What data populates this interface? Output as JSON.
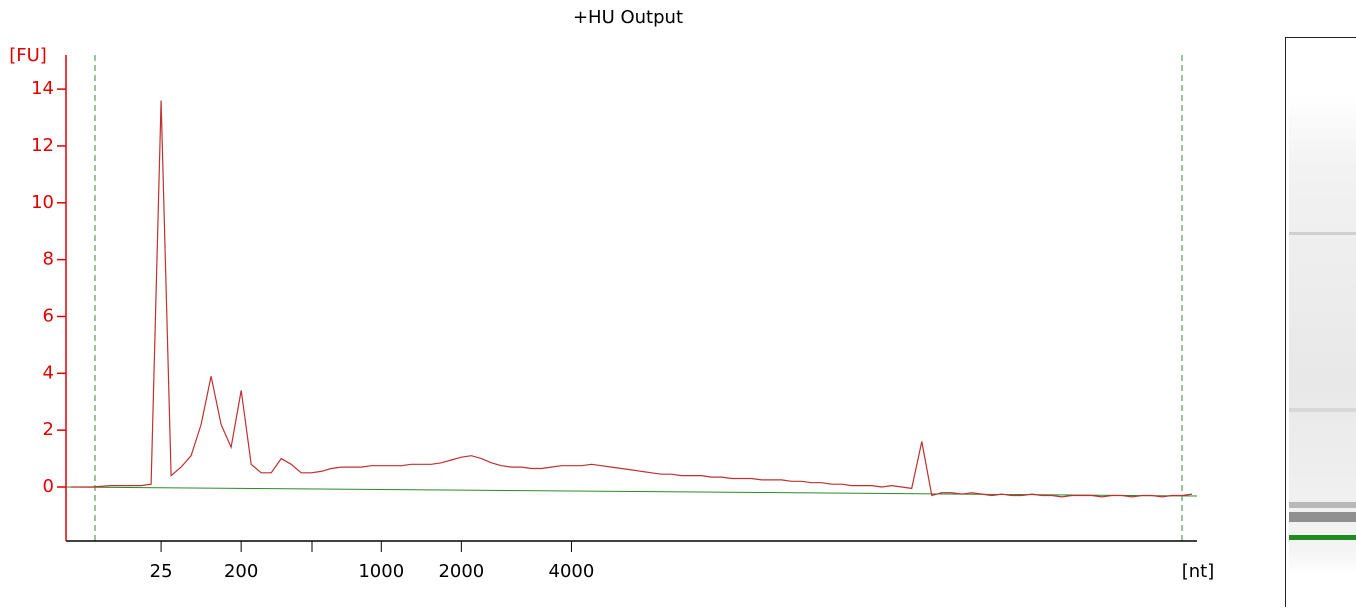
{
  "chart_data": {
    "type": "line",
    "title": "+HU Output",
    "y_unit_label": "[FU]",
    "x_unit_label": "[nt]",
    "categories": [
      null,
      null,
      null,
      null,
      null,
      null,
      null,
      null,
      null,
      "25",
      null,
      null,
      null,
      null,
      null,
      null,
      null,
      "200",
      null,
      null,
      null,
      null,
      null,
      null,
      null,
      null,
      null,
      null,
      null,
      null,
      null,
      "1000",
      null,
      null,
      null,
      null,
      null,
      null,
      null,
      "2000",
      null,
      null,
      null,
      null,
      null,
      null,
      null,
      null,
      null,
      null,
      "4000",
      null,
      null,
      null,
      null,
      null,
      null,
      null,
      null,
      null,
      null,
      null,
      null,
      null,
      null,
      null,
      null,
      null,
      null,
      null,
      null,
      null,
      null,
      null,
      null,
      null,
      null,
      null,
      null,
      null,
      null,
      null,
      null,
      null,
      null,
      null,
      null,
      null,
      null,
      null,
      null,
      null,
      null,
      null,
      null,
      null,
      null,
      null,
      null,
      null,
      null,
      null,
      null,
      null,
      null,
      null,
      null,
      null,
      null,
      null,
      null,
      null,
      null
    ],
    "values": [
      0,
      0,
      0,
      0.02,
      0.05,
      0.05,
      0.05,
      0.05,
      0.1,
      13.6,
      0.4,
      0.7,
      1.1,
      2.2,
      3.9,
      2.2,
      1.4,
      3.4,
      0.8,
      0.5,
      0.5,
      1.0,
      0.8,
      0.5,
      0.5,
      0.55,
      0.65,
      0.7,
      0.7,
      0.7,
      0.75,
      0.75,
      0.75,
      0.75,
      0.8,
      0.8,
      0.8,
      0.85,
      0.95,
      1.05,
      1.1,
      1.0,
      0.85,
      0.75,
      0.7,
      0.7,
      0.65,
      0.65,
      0.7,
      0.75,
      0.75,
      0.75,
      0.8,
      0.75,
      0.7,
      0.65,
      0.6,
      0.55,
      0.5,
      0.45,
      0.45,
      0.4,
      0.4,
      0.4,
      0.35,
      0.35,
      0.3,
      0.3,
      0.3,
      0.25,
      0.25,
      0.25,
      0.2,
      0.2,
      0.15,
      0.15,
      0.1,
      0.1,
      0.05,
      0.05,
      0.05,
      0.0,
      0.05,
      0.0,
      -0.05,
      1.6,
      -0.3,
      -0.2,
      -0.2,
      -0.25,
      -0.2,
      -0.25,
      -0.3,
      -0.25,
      -0.3,
      -0.3,
      -0.25,
      -0.3,
      -0.3,
      -0.35,
      -0.3,
      -0.3,
      -0.3,
      -0.35,
      -0.3,
      -0.3,
      -0.35,
      -0.3,
      -0.3,
      -0.35,
      -0.3,
      -0.3,
      -0.25
    ],
    "color": "#c03030",
    "axis_color": "#e00000",
    "ylim": [
      -1.9,
      15.2
    ],
    "yticks": [
      0,
      2,
      4,
      6,
      8,
      10,
      12,
      14
    ]
  }
}
